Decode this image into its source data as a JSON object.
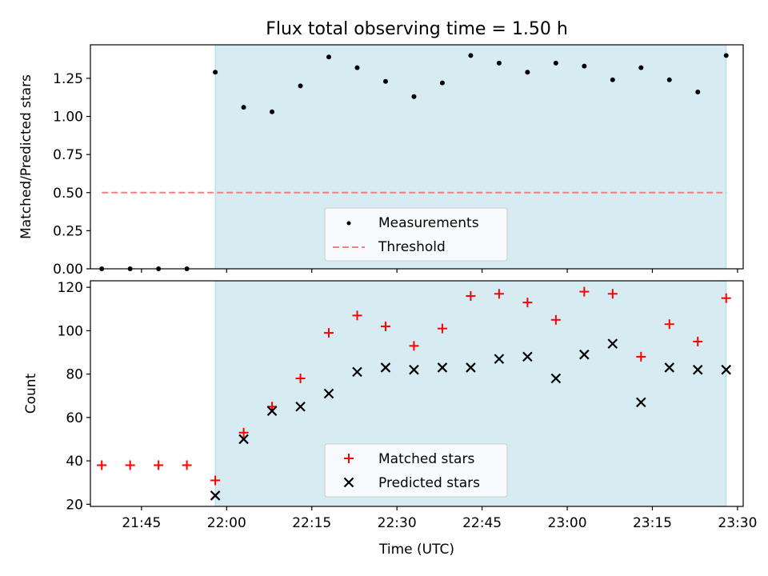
{
  "title": "Flux total observing time = 1.50 h",
  "colors": {
    "band": "#add8e6",
    "measurement": "#000000",
    "threshold": "#f08080",
    "matched": "#ff0000",
    "predicted": "#000000"
  },
  "chart_data": [
    {
      "type": "scatter",
      "ylabel": "Matched/Predicted stars",
      "ylim": [
        0,
        1.47
      ],
      "yticks": [
        "0.00",
        "0.25",
        "0.50",
        "0.75",
        "1.00",
        "1.25"
      ],
      "x_time_ticks": [
        "21:45",
        "22:00",
        "22:15",
        "22:30",
        "22:45",
        "23:00",
        "23:15",
        "23:30"
      ],
      "xlim": [
        "21:36",
        "23:31"
      ],
      "shaded_interval": [
        "21:58",
        "23:28"
      ],
      "threshold": {
        "name": "Threshold",
        "value": 0.5,
        "x_range": [
          "21:38",
          "23:28"
        ],
        "style": "dashed"
      },
      "series": [
        {
          "name": "Measurements",
          "marker": "dot",
          "x": [
            "21:38",
            "21:43",
            "21:48",
            "21:53",
            "21:58",
            "22:03",
            "22:08",
            "22:13",
            "22:18",
            "22:23",
            "22:28",
            "22:33",
            "22:38",
            "22:43",
            "22:48",
            "22:53",
            "22:58",
            "23:03",
            "23:08",
            "23:13",
            "23:18",
            "23:23",
            "23:28"
          ],
          "y": [
            0.0,
            0.0,
            0.0,
            0.0,
            1.29,
            1.06,
            1.03,
            1.2,
            1.39,
            1.32,
            1.23,
            1.13,
            1.22,
            1.4,
            1.35,
            1.29,
            1.35,
            1.33,
            1.24,
            1.32,
            1.24,
            1.16,
            1.4
          ]
        }
      ],
      "legend": {
        "position": "lower center",
        "entries": [
          "Measurements",
          "Threshold"
        ]
      }
    },
    {
      "type": "scatter",
      "xlabel": "Time (UTC)",
      "ylabel": "Count",
      "ylim": [
        19,
        123
      ],
      "yticks": [
        "20",
        "40",
        "60",
        "80",
        "100",
        "120"
      ],
      "x_time_ticks": [
        "21:45",
        "22:00",
        "22:15",
        "22:30",
        "22:45",
        "23:00",
        "23:15",
        "23:30"
      ],
      "xlim": [
        "21:36",
        "23:31"
      ],
      "shaded_interval": [
        "21:58",
        "23:28"
      ],
      "series": [
        {
          "name": "Matched stars",
          "marker": "plus",
          "x": [
            "21:38",
            "21:43",
            "21:48",
            "21:53",
            "21:58",
            "22:03",
            "22:08",
            "22:13",
            "22:18",
            "22:23",
            "22:28",
            "22:33",
            "22:38",
            "22:43",
            "22:48",
            "22:53",
            "22:58",
            "23:03",
            "23:08",
            "23:13",
            "23:18",
            "23:23",
            "23:28"
          ],
          "y": [
            38,
            38,
            38,
            38,
            31,
            53,
            65,
            78,
            99,
            107,
            102,
            93,
            101,
            116,
            117,
            113,
            105,
            118,
            117,
            88,
            103,
            95,
            115
          ]
        },
        {
          "name": "Predicted stars",
          "marker": "x",
          "x": [
            "21:58",
            "22:03",
            "22:08",
            "22:13",
            "22:18",
            "22:23",
            "22:28",
            "22:33",
            "22:38",
            "22:43",
            "22:48",
            "22:53",
            "22:58",
            "23:03",
            "23:08",
            "23:13",
            "23:18",
            "23:23",
            "23:28"
          ],
          "y": [
            24,
            50,
            63,
            65,
            71,
            81,
            83,
            82,
            83,
            83,
            87,
            88,
            78,
            89,
            94,
            67,
            83,
            82,
            82
          ]
        }
      ],
      "legend": {
        "position": "lower center",
        "entries": [
          "Matched stars",
          "Predicted stars"
        ]
      }
    }
  ]
}
